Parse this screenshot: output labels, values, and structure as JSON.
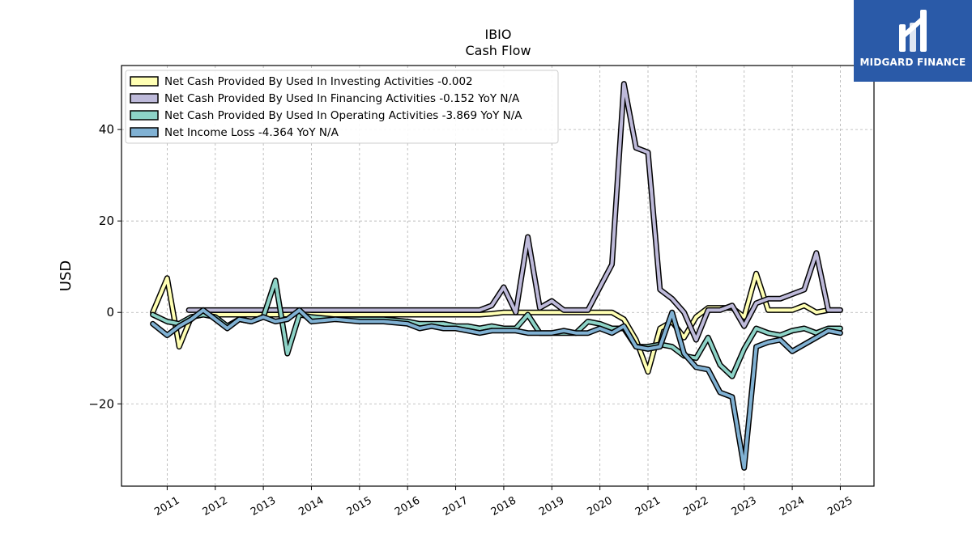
{
  "chart_data": {
    "type": "line",
    "title": "IBIO",
    "subtitle": "Cash Flow",
    "ylabel": "USD",
    "xlabel": "",
    "xlim": [
      2010.05,
      2025.7
    ],
    "ylim": [
      -38,
      54
    ],
    "yticks": [
      -20,
      0,
      20,
      40
    ],
    "yticklabels": [
      "−20",
      "0",
      "20",
      "40"
    ],
    "xticks": [
      2011,
      2012,
      2013,
      2014,
      2015,
      2016,
      2017,
      2018,
      2019,
      2020,
      2021,
      2022,
      2023,
      2024,
      2025
    ],
    "xticklabels": [
      "2011",
      "2012",
      "2013",
      "2014",
      "2015",
      "2016",
      "2017",
      "2018",
      "2019",
      "2020",
      "2021",
      "2022",
      "2023",
      "2024",
      "2025"
    ],
    "grid": true,
    "legend_position": "top-left",
    "series": [
      {
        "name": "Net Cash Provided By Used In Investing Activities",
        "legend": "Net Cash Provided By Used In Investing Activities  -0.002",
        "color": "#ffffb3",
        "x": [
          2010.7,
          2011.0,
          2011.25,
          2011.5,
          2011.75,
          2012.0,
          2012.25,
          2012.5,
          2012.75,
          2013.0,
          2013.25,
          2013.5,
          2013.75,
          2014.0,
          2014.5,
          2015.0,
          2015.5,
          2016.0,
          2016.5,
          2017.0,
          2017.5,
          2017.75,
          2018.0,
          2018.25,
          2018.5,
          2018.75,
          2019.0,
          2019.25,
          2019.5,
          2019.75,
          2020.0,
          2020.25,
          2020.5,
          2020.75,
          2021.0,
          2021.25,
          2021.5,
          2021.75,
          2022.0,
          2022.25,
          2022.5,
          2022.75,
          2023.0,
          2023.25,
          2023.5,
          2023.75,
          2024.0,
          2024.25,
          2024.5,
          2024.75,
          2025.0
        ],
        "y": [
          0,
          7.5,
          -7.5,
          -1,
          -0.5,
          -0.5,
          -0.5,
          -0.5,
          -0.5,
          -0.5,
          -0.5,
          -0.5,
          0,
          -0.5,
          -0.5,
          -0.5,
          -0.5,
          -0.5,
          -0.5,
          -0.5,
          -0.5,
          -0.3,
          0,
          0,
          0,
          0,
          0,
          0,
          0,
          0,
          0,
          0,
          -1.5,
          -6,
          -13,
          -3.5,
          -2,
          -5.5,
          -1,
          1,
          1,
          1,
          -1,
          8.5,
          0.5,
          0.5,
          0.5,
          1.5,
          0,
          0.5,
          0.5
        ]
      },
      {
        "name": "Net Cash Provided By Used In Financing Activities",
        "legend": "Net Cash Provided By Used In Financing Activities  -0.152 YoY N/A",
        "color": "#bebada",
        "x": [
          2011.45,
          2011.75,
          2012.0,
          2012.5,
          2013.0,
          2013.5,
          2014.0,
          2014.5,
          2015.0,
          2015.5,
          2016.0,
          2016.5,
          2017.0,
          2017.25,
          2017.5,
          2017.75,
          2018.0,
          2018.25,
          2018.5,
          2018.75,
          2019.0,
          2019.25,
          2019.5,
          2019.75,
          2020.0,
          2020.25,
          2020.5,
          2020.75,
          2021.0,
          2021.25,
          2021.5,
          2021.75,
          2022.0,
          2022.25,
          2022.5,
          2022.75,
          2023.0,
          2023.25,
          2023.5,
          2023.75,
          2024.0,
          2024.25,
          2024.5,
          2024.75,
          2025.0
        ],
        "y": [
          0.5,
          0.5,
          0.5,
          0.5,
          0.5,
          0.5,
          0.5,
          0.5,
          0.5,
          0.5,
          0.5,
          0.5,
          0.5,
          0.5,
          0.5,
          1.5,
          5.5,
          0,
          16.5,
          1,
          2.5,
          0.5,
          0.5,
          0.5,
          5.5,
          10.5,
          50,
          36,
          35,
          5,
          3,
          0,
          -6,
          0.5,
          0.5,
          1.5,
          -3,
          2,
          3,
          3,
          4,
          5,
          13,
          0.5,
          0.5
        ]
      },
      {
        "name": "Net Cash Provided By Used In Operating Activities",
        "legend": "Net Cash Provided By Used In Operating Activities  -3.869 YoY N/A",
        "color": "#8dd3c7",
        "x": [
          2010.7,
          2011.0,
          2011.25,
          2011.5,
          2011.75,
          2012.0,
          2012.25,
          2012.5,
          2012.75,
          2013.0,
          2013.25,
          2013.5,
          2013.75,
          2014.0,
          2014.5,
          2015.0,
          2015.5,
          2016.0,
          2016.25,
          2016.5,
          2016.75,
          2017.0,
          2017.25,
          2017.5,
          2017.75,
          2018.0,
          2018.25,
          2018.5,
          2018.75,
          2019.0,
          2019.25,
          2019.5,
          2019.75,
          2020.0,
          2020.25,
          2020.5,
          2020.75,
          2021.0,
          2021.25,
          2021.5,
          2021.75,
          2022.0,
          2022.25,
          2022.5,
          2022.75,
          2023.0,
          2023.25,
          2023.5,
          2023.75,
          2024.0,
          2024.25,
          2024.5,
          2024.75,
          2025.0
        ],
        "y": [
          -0.5,
          -2,
          -2.5,
          -1,
          -0.5,
          -1,
          -3,
          -1.5,
          -2,
          -1,
          7,
          -9,
          -0.5,
          -1,
          -1.5,
          -1.5,
          -1.5,
          -2,
          -2.5,
          -2.5,
          -2.5,
          -3,
          -3,
          -3.5,
          -3,
          -3.5,
          -3.5,
          -0.5,
          -4.5,
          -4.5,
          -4.5,
          -4.5,
          -2,
          -2.5,
          -3.5,
          -3.5,
          -7.5,
          -7.5,
          -7,
          -7.5,
          -9.5,
          -10,
          -5.5,
          -11.5,
          -14,
          -8,
          -3.5,
          -4.5,
          -5,
          -4,
          -3.5,
          -4.5,
          -3.5,
          -3.5
        ]
      },
      {
        "name": "Net Income Loss",
        "legend": "Net Income Loss  -4.364 YoY N/A",
        "color": "#80b1d3",
        "x": [
          2010.7,
          2011.0,
          2011.25,
          2011.5,
          2011.75,
          2012.0,
          2012.25,
          2012.5,
          2012.75,
          2013.0,
          2013.25,
          2013.5,
          2013.75,
          2014.0,
          2014.5,
          2015.0,
          2015.5,
          2016.0,
          2016.25,
          2016.5,
          2016.75,
          2017.0,
          2017.25,
          2017.5,
          2017.75,
          2018.0,
          2018.25,
          2018.5,
          2018.75,
          2019.0,
          2019.25,
          2019.5,
          2019.75,
          2020.0,
          2020.25,
          2020.5,
          2020.75,
          2021.0,
          2021.25,
          2021.5,
          2021.75,
          2022.0,
          2022.25,
          2022.5,
          2022.75,
          2023.0,
          2023.25,
          2023.5,
          2023.75,
          2024.0,
          2024.25,
          2024.5,
          2024.75,
          2025.0
        ],
        "y": [
          -2.5,
          -5,
          -3,
          -1.5,
          0.5,
          -1.5,
          -3.5,
          -1.5,
          -2,
          -1,
          -2,
          -1.5,
          0.5,
          -2,
          -1.5,
          -2,
          -2,
          -2.5,
          -3.5,
          -3,
          -3.5,
          -3.5,
          -4,
          -4.5,
          -4,
          -4,
          -4,
          -4.5,
          -4.5,
          -4.5,
          -4,
          -4.5,
          -4.5,
          -3.5,
          -4.5,
          -3,
          -7.5,
          -8,
          -7.5,
          0,
          -9,
          -12,
          -12.5,
          -17.5,
          -18.5,
          -34,
          -7.5,
          -6.5,
          -6,
          -8.5,
          -7,
          -5.5,
          -4,
          -4.5
        ]
      }
    ]
  },
  "logo": {
    "text": "MIDGARD FINANCE",
    "icon": "midgard-logo-icon",
    "background": "#2a5aa8"
  }
}
